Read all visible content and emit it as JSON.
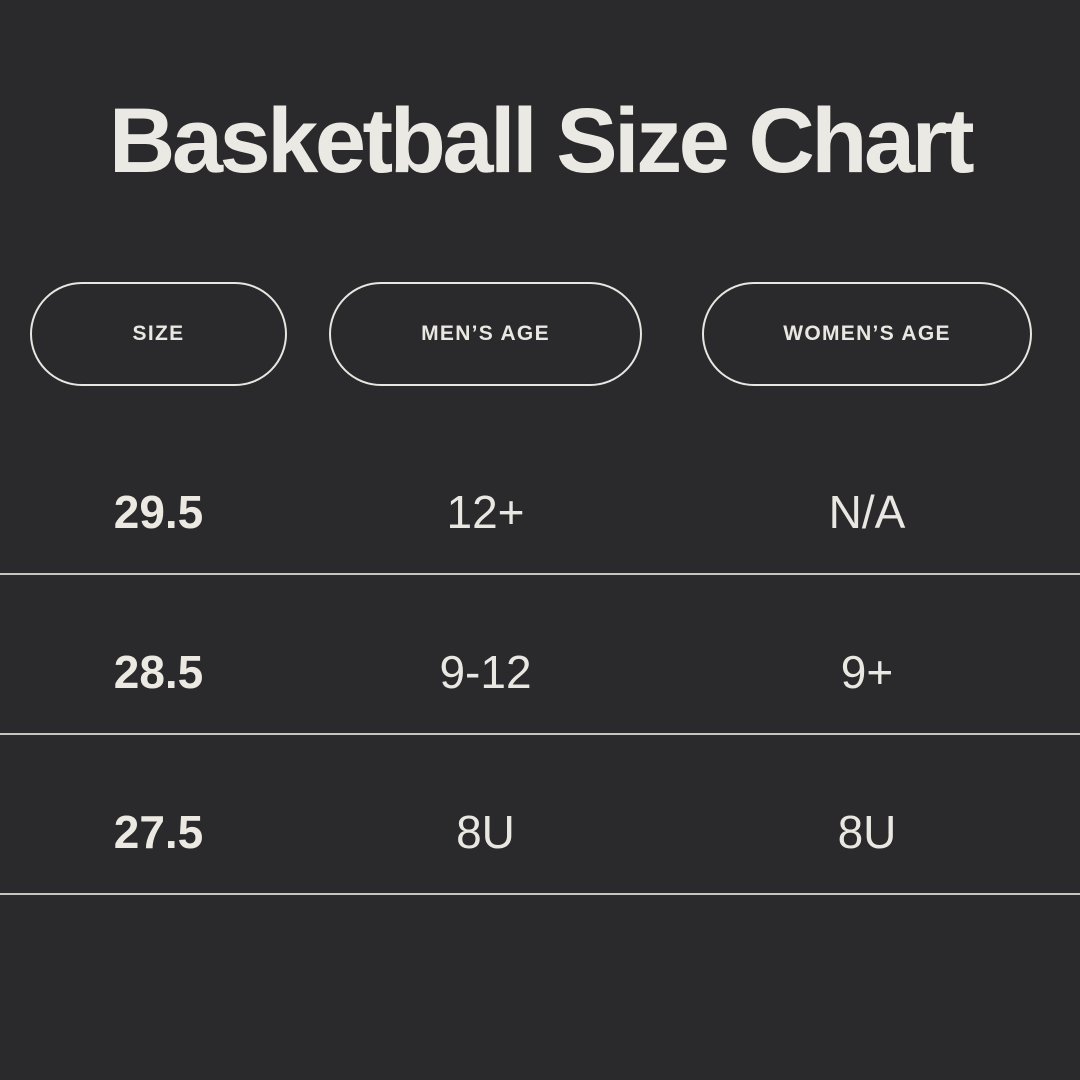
{
  "title": "Basketball Size Chart",
  "colors": {
    "background": "#2a292b",
    "text": "#eae8e2",
    "title_text": "#ebe9e3",
    "pill_border": "#e8e6e1",
    "divider": "#c7c5c1"
  },
  "table": {
    "columns": [
      {
        "label": "SIZE"
      },
      {
        "label": "MEN’S AGE"
      },
      {
        "label": "WOMEN’S AGE"
      }
    ],
    "rows": [
      {
        "size": "29.5",
        "mens_age": "12+",
        "womens_age": "N/A"
      },
      {
        "size": "28.5",
        "mens_age": "9-12",
        "womens_age": "9+"
      },
      {
        "size": "27.5",
        "mens_age": "8U",
        "womens_age": "8U"
      }
    ]
  },
  "chart_data": {
    "type": "table",
    "title": "Basketball Size Chart",
    "columns": [
      "SIZE",
      "MEN’S AGE",
      "WOMEN’S AGE"
    ],
    "rows": [
      [
        "29.5",
        "12+",
        "N/A"
      ],
      [
        "28.5",
        "9-12",
        "9+"
      ],
      [
        "27.5",
        "8U",
        "8U"
      ]
    ]
  }
}
